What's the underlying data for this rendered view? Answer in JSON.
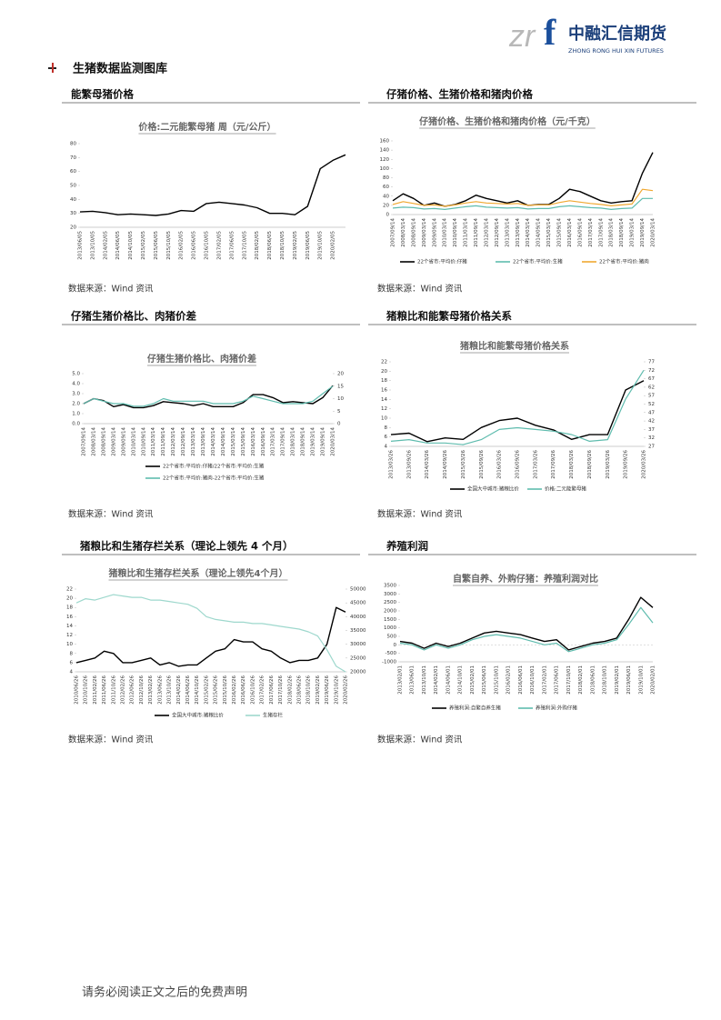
{
  "logo_mark": [
    "zr",
    "f"
  ],
  "company": "中融汇信期货",
  "company_en": "ZHONG RONG HUI XIN FUTURES",
  "section_title": "生猪数据监测图库",
  "headings": [
    "能繁母猪价格",
    "仔猪价格、生猪价格和猪肉价格",
    "仔猪生猪价格比、肉猪价差",
    "猪粮比和能繁母猪价格关系",
    "猪粮比和生猪存栏关系（理论上领先 4 个月）",
    "养殖利润"
  ],
  "sources": [
    "数据来源：Wind 资讯",
    "数据来源：Wind 资讯",
    "数据来源：Wind 资讯",
    "数据来源：Wind 资讯",
    "数据来源：Wind 资讯",
    "数据来源：Wind 资讯"
  ],
  "footer": "请务必阅读正文之后的免费声明",
  "chart_data": [
    {
      "type": "line",
      "title": "价格:二元能繁母猪 周（元/公斤）",
      "categories": [
        "2013/06/05",
        "2013/10/05",
        "2014/02/05",
        "2014/06/05",
        "2014/10/05",
        "2015/02/05",
        "2015/06/05",
        "2015/10/05",
        "2016/02/05",
        "2016/06/05",
        "2016/10/05",
        "2017/02/05",
        "2017/06/05",
        "2017/10/05",
        "2018/02/05",
        "2018/06/05",
        "2018/10/05",
        "2019/02/05",
        "2019/06/05",
        "2019/10/05",
        "2020/02/05",
        null
      ],
      "series": [
        {
          "name": null,
          "color": "#000000",
          "values": [
            31,
            31.5,
            30.5,
            29,
            29.5,
            29,
            28.5,
            29.5,
            32,
            31.5,
            37,
            38,
            37,
            36,
            34,
            30,
            30,
            29,
            35,
            62,
            68,
            72
          ]
        }
      ],
      "ylim": [
        20,
        80
      ],
      "yticks": [
        20,
        30,
        40,
        50,
        60,
        70,
        80
      ]
    },
    {
      "type": "line",
      "title": "仔猪价格、生猪价格和猪肉价格（元/千克）",
      "categories": [
        "2007/09/14",
        "2008/03/14",
        "2008/09/14",
        "2009/03/14",
        "2009/09/14",
        "2010/03/14",
        "2010/09/14",
        "2011/03/14",
        "2011/09/14",
        "2012/03/14",
        "2012/09/14",
        "2013/03/14",
        "2013/09/14",
        "2014/03/14",
        "2014/09/14",
        "2015/03/14",
        "2015/09/14",
        "2016/03/14",
        "2016/09/14",
        "2017/03/14",
        "2017/09/14",
        "2018/03/14",
        "2018/09/14",
        "2019/03/14",
        "2019/09/14",
        "2020/03/14"
      ],
      "series": [
        {
          "name": "22个省市:平均价:仔猪",
          "color": "#000000",
          "values": [
            30,
            45,
            35,
            20,
            25,
            18,
            22,
            30,
            42,
            35,
            30,
            25,
            30,
            20,
            22,
            22,
            35,
            55,
            50,
            40,
            30,
            25,
            28,
            30,
            90,
            135
          ]
        },
        {
          "name": "22个省市:平均价:生猪",
          "color": "#5fbcae",
          "values": [
            14,
            16,
            15,
            12,
            13,
            11,
            14,
            17,
            19,
            16,
            15,
            14,
            15,
            12,
            13,
            13,
            17,
            19,
            17,
            15,
            14,
            11,
            13,
            14,
            35,
            35
          ]
        },
        {
          "name": "22个省市:平均价:猪肉",
          "color": "#f0a830",
          "values": [
            22,
            28,
            24,
            20,
            21,
            18,
            21,
            25,
            28,
            25,
            24,
            23,
            24,
            20,
            21,
            21,
            26,
            30,
            27,
            24,
            22,
            19,
            21,
            23,
            55,
            52
          ]
        }
      ],
      "ylim": [
        0,
        160
      ],
      "yticks": [
        0,
        20,
        40,
        60,
        80,
        100,
        120,
        140,
        160
      ]
    },
    {
      "type": "line",
      "title": "仔猪生猪价格比、肉猪价差",
      "categories": [
        "2007/09/14",
        "2008/03/14",
        "2008/09/14",
        "2009/03/14",
        "2009/09/14",
        "2010/03/14",
        "2010/09/14",
        "2011/03/14",
        "2011/09/14",
        "2012/03/14",
        "2012/09/14",
        "2013/03/14",
        "2013/09/14",
        "2014/03/14",
        "2014/09/14",
        "2015/03/14",
        "2015/09/14",
        "2016/03/14",
        "2016/09/14",
        "2017/03/14",
        "2017/09/14",
        "2018/03/14",
        "2018/09/14",
        "2019/03/14",
        "2019/09/14",
        "2020/03/14"
      ],
      "series": [
        {
          "name": "22个省市:平均价:仔猪/22个省市:平均价:生猪",
          "color": "#000000",
          "values": [
            2.0,
            2.5,
            2.3,
            1.7,
            1.9,
            1.6,
            1.6,
            1.8,
            2.2,
            2.1,
            2.0,
            1.8,
            2.0,
            1.7,
            1.7,
            1.7,
            2.1,
            2.9,
            2.9,
            2.6,
            2.1,
            2.2,
            2.1,
            2.0,
            2.6,
            3.8
          ]
        },
        {
          "name": "22个省市:平均价:猪肉-22个省市:平均价:生猪",
          "color": "#5fbcae",
          "axis": "y2",
          "values": [
            8,
            10,
            9,
            8,
            8,
            7,
            7,
            8,
            10,
            9,
            9,
            9,
            9,
            8,
            8,
            8,
            9,
            11,
            10,
            9,
            8,
            8,
            8,
            9,
            12,
            15
          ]
        }
      ],
      "ylim": [
        0,
        5
      ],
      "yticks": [
        {
          "value": 0,
          "label": "0.0"
        },
        {
          "value": 1,
          "label": "1.0"
        },
        {
          "value": 2,
          "label": "2.0"
        },
        {
          "value": 3,
          "label": "3.0"
        },
        {
          "value": 4,
          "label": "4.0"
        },
        {
          "value": 5,
          "label": "5.0"
        }
      ],
      "y2lim": [
        0,
        20
      ],
      "y2ticks": [
        0,
        5,
        10,
        15,
        20
      ]
    },
    {
      "type": "line",
      "title": "猪粮比和能繁母猪价格关系",
      "categories": [
        "2013/03/26",
        "2013/09/26",
        "2014/03/26",
        "2014/09/26",
        "2015/03/26",
        "2015/09/26",
        "2016/03/26",
        "2016/09/26",
        "2017/03/26",
        "2017/09/26",
        "2018/03/26",
        "2018/09/26",
        "2019/03/26",
        "2019/09/26",
        "2020/03/26"
      ],
      "series": [
        {
          "name": "全国大中城市:猪粮比价",
          "color": "#000000",
          "values": [
            6.5,
            6.8,
            5.0,
            5.8,
            5.5,
            8.0,
            9.5,
            10.0,
            8.5,
            7.5,
            5.5,
            6.5,
            6.5,
            16,
            18
          ]
        },
        {
          "name": "价格:二元能繁母猪",
          "color": "#5fbcae",
          "axis": "y2",
          "values": [
            30,
            31,
            29,
            29,
            28,
            31,
            37,
            38,
            37,
            36,
            34,
            30,
            31,
            55,
            72
          ]
        }
      ],
      "ylim": [
        4,
        22
      ],
      "yticks": [
        4,
        6,
        8,
        10,
        12,
        14,
        16,
        18,
        20,
        22
      ],
      "y2lim": [
        27,
        77
      ],
      "y2ticks": [
        27,
        32,
        37,
        42,
        47,
        52,
        57,
        62,
        67,
        72,
        77
      ]
    },
    {
      "type": "line",
      "title": "猪粮比和生猪存栏关系（理论上领先4个月）",
      "categories": [
        "2010/06/26",
        "2010/10/26",
        "2011/02/26",
        "2011/06/26",
        "2011/10/26",
        "2012/02/26",
        "2012/06/26",
        "2012/10/26",
        "2013/02/26",
        "2013/06/26",
        "2013/10/26",
        "2014/02/26",
        "2014/06/26",
        "2014/10/26",
        "2015/02/26",
        "2015/06/26",
        "2015/10/26",
        "2016/02/26",
        "2016/06/26",
        "2016/10/26",
        "2017/02/26",
        "2017/06/26",
        "2017/10/26",
        "2018/02/26",
        "2018/06/26",
        "2018/10/26",
        "2019/02/26",
        "2019/06/26",
        "2019/10/26",
        "2020/02/26"
      ],
      "series": [
        {
          "name": "全国大中城市:猪粮比价",
          "color": "#000000",
          "values": [
            6,
            6.5,
            7,
            8.5,
            8,
            6,
            6,
            6.5,
            7,
            5.5,
            6,
            5.2,
            5.5,
            5.5,
            7,
            8.5,
            9,
            11,
            10.5,
            10.5,
            9,
            8.5,
            7,
            6,
            6.5,
            6.5,
            7,
            10,
            18,
            17
          ]
        },
        {
          "name": "生猪存栏",
          "color": "#9ed8cd",
          "axis": "y2",
          "values": [
            45000,
            46500,
            46000,
            47000,
            48000,
            47500,
            47000,
            47000,
            46000,
            46000,
            45500,
            45000,
            44500,
            43000,
            40000,
            39000,
            38500,
            38000,
            38000,
            37500,
            37500,
            37000,
            36500,
            36000,
            35500,
            34500,
            33000,
            28000,
            22000,
            20000
          ]
        }
      ],
      "ylim": [
        4,
        22
      ],
      "yticks": [
        4,
        6,
        8,
        10,
        12,
        14,
        16,
        18,
        20,
        22
      ],
      "y2lim": [
        20000,
        50000
      ],
      "y2ticks": [
        20000,
        25000,
        30000,
        35000,
        40000,
        45000,
        50000
      ]
    },
    {
      "type": "line",
      "title": "自繁自养、外购仔猪：养殖利润对比",
      "categories": [
        "2013/02/01",
        "2013/06/01",
        "2013/10/01",
        "2014/02/01",
        "2014/06/01",
        "2014/10/01",
        "2015/02/01",
        "2015/06/01",
        "2015/10/01",
        "2016/02/01",
        "2016/06/01",
        "2016/10/01",
        "2017/02/01",
        "2017/06/01",
        "2017/10/01",
        "2018/02/01",
        "2018/06/01",
        "2018/10/01",
        "2019/02/01",
        "2019/06/01",
        "2019/10/01",
        "2020/02/01"
      ],
      "series": [
        {
          "name": "养殖利润:自繁自养生猪",
          "color": "#000000",
          "values": [
            200,
            100,
            -200,
            100,
            -100,
            100,
            400,
            700,
            800,
            700,
            600,
            400,
            200,
            300,
            -300,
            -100,
            100,
            200,
            400,
            1500,
            2800,
            2200
          ]
        },
        {
          "name": "养殖利润:外购仔猪",
          "color": "#5fbcae",
          "values": [
            100,
            0,
            -300,
            0,
            -200,
            0,
            300,
            500,
            600,
            500,
            400,
            200,
            0,
            100,
            -400,
            -200,
            0,
            100,
            300,
            1200,
            2200,
            1300
          ]
        }
      ],
      "ylim": [
        -1000,
        3500
      ],
      "yticks": [
        -1000,
        -500,
        0,
        500,
        1000,
        1500,
        2000,
        2500,
        3000,
        3500
      ]
    }
  ]
}
